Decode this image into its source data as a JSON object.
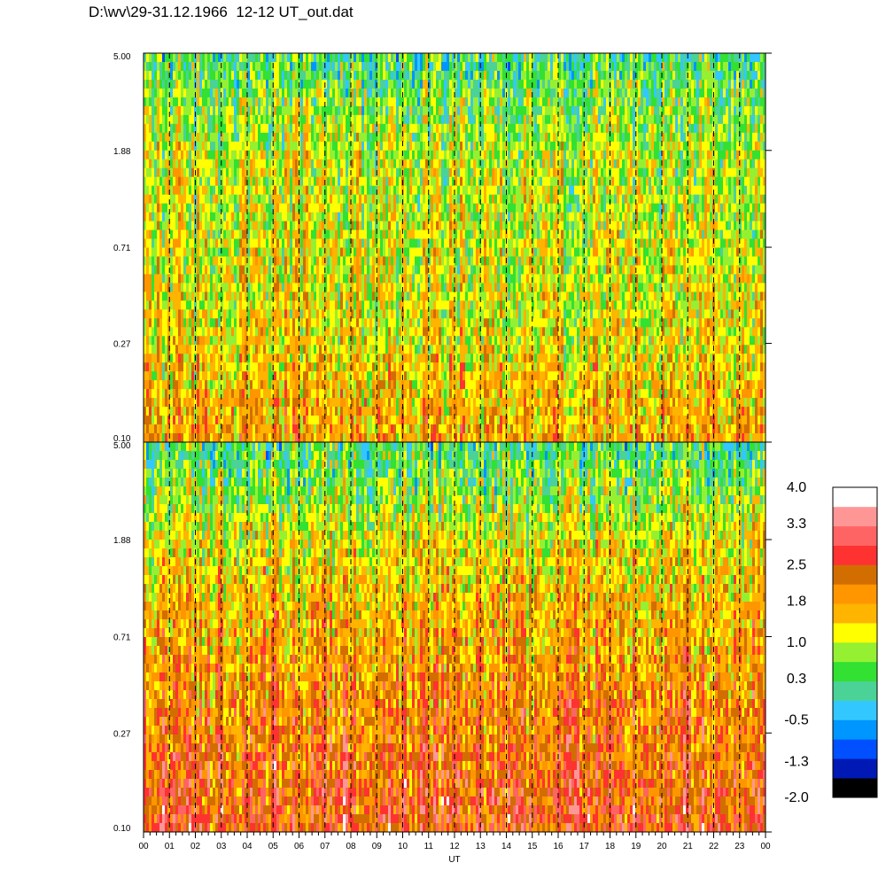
{
  "title": "D:\\wv\\29-31.12.1966  12-12 UT_out.dat",
  "chart_data": {
    "type": "heatmap",
    "panels": [
      {
        "name": "upper",
        "y_ticks": [
          "5.00",
          "1.88",
          "0.71",
          "0.27",
          "0.10"
        ],
        "ylim": [
          0.1,
          5.0
        ],
        "y_scale": "log",
        "typical_level_top_to_bottom": [
          0.3,
          1.0,
          1.1,
          1.3,
          1.8
        ]
      },
      {
        "name": "lower",
        "y_ticks": [
          "5.00",
          "1.88",
          "0.71",
          "0.27",
          "0.10"
        ],
        "ylim": [
          0.1,
          5.0
        ],
        "y_scale": "log",
        "typical_level_top_to_bottom": [
          0.3,
          1.3,
          1.8,
          2.2,
          2.6
        ]
      }
    ],
    "x_ticks": [
      "00",
      "01",
      "02",
      "03",
      "04",
      "05",
      "06",
      "07",
      "08",
      "09",
      "10",
      "11",
      "12",
      "13",
      "14",
      "15",
      "16",
      "17",
      "18",
      "19",
      "20",
      "21",
      "22",
      "23",
      "00"
    ],
    "xlabel": "UT",
    "dashed_hour_gridlines": true,
    "colorbar": {
      "tick_labels": [
        "4.0",
        "3.3",
        "2.5",
        "1.8",
        "1.0",
        "0.3",
        "-0.5",
        "-1.3",
        "-2.0"
      ],
      "range": [
        -2.0,
        4.0
      ],
      "colors_bottom_to_top": [
        "#000000",
        "#0019b4",
        "#0050ff",
        "#0096ff",
        "#32c8ff",
        "#4bd296",
        "#32e132",
        "#96f032",
        "#ffff00",
        "#ffb400",
        "#ff9600",
        "#d26e00",
        "#ff3232",
        "#ff6464",
        "#ff9696",
        "#ffffff"
      ]
    }
  }
}
